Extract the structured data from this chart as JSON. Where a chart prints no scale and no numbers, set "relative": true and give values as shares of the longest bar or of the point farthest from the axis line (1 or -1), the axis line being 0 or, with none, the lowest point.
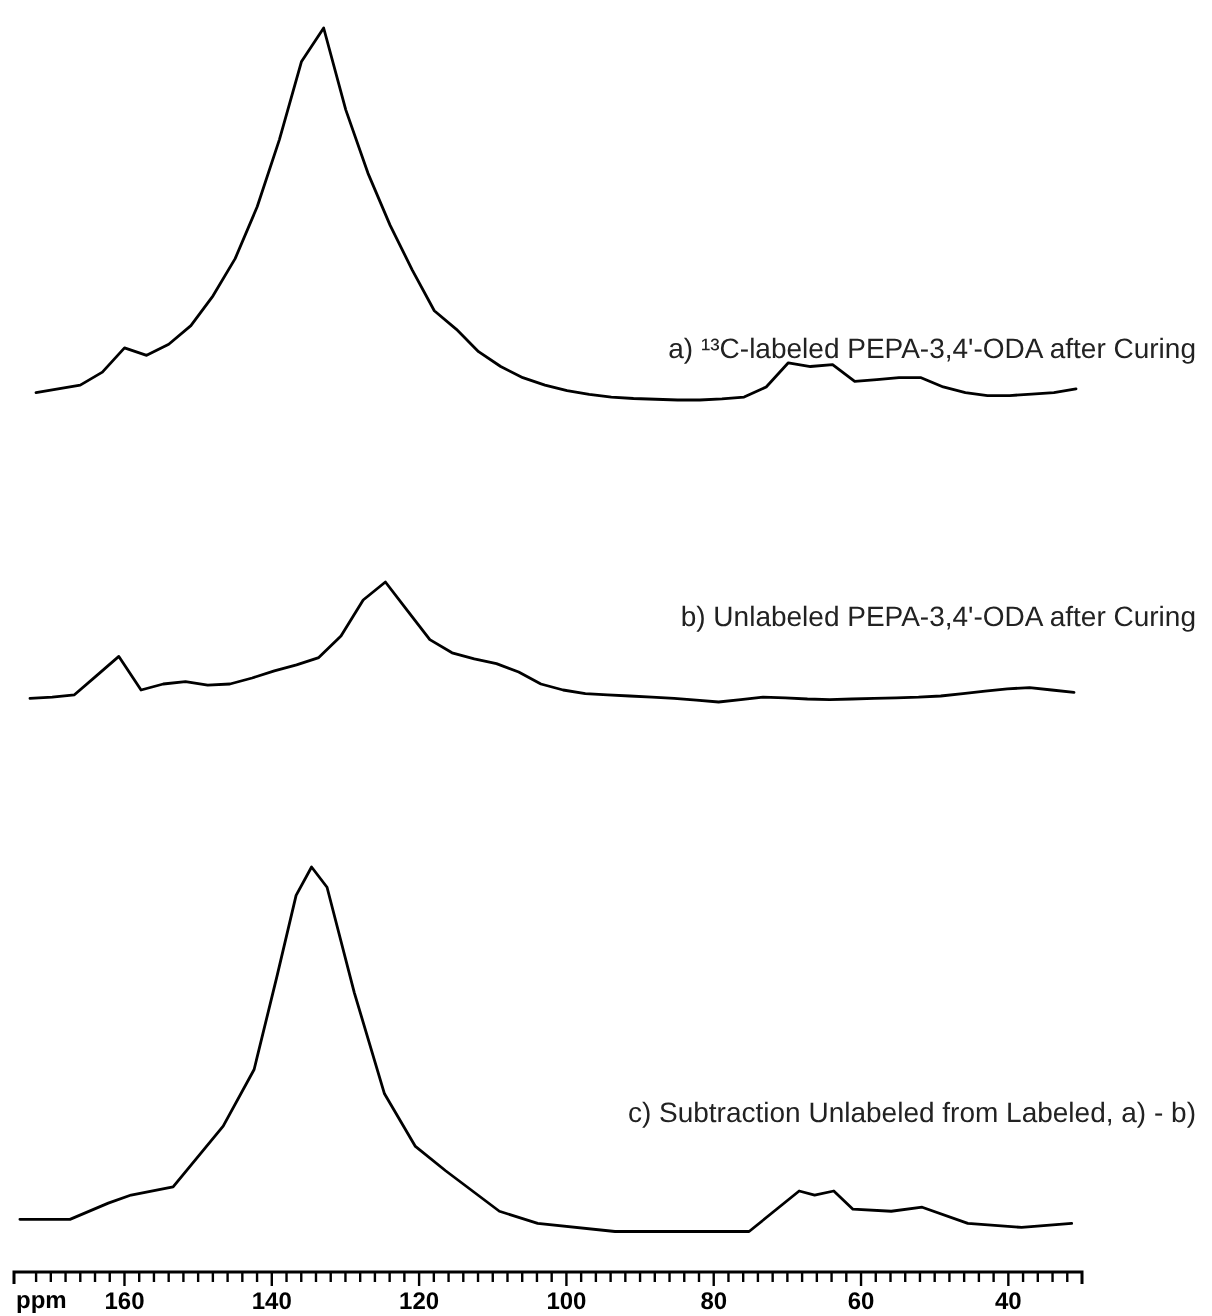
{
  "chart_data": [
    {
      "type": "line",
      "relative": true,
      "tick_labels": false,
      "categories": [
        null,
        null,
        null,
        null,
        null,
        null,
        null,
        null,
        null,
        null,
        null,
        null,
        null,
        null,
        null,
        null,
        null,
        null,
        null,
        null,
        null,
        null,
        null,
        null,
        null,
        null,
        null,
        null,
        null,
        null,
        null,
        null,
        null,
        null,
        null,
        null,
        null,
        null,
        null,
        null,
        null,
        null,
        null,
        null,
        null,
        null,
        null,
        null
      ],
      "series": [
        {
          "name": "a) ¹³C-labeled PEPA-3,4'-ODA after Curing",
          "color": "#000000",
          "values": [
            0.02,
            0.03,
            0.04,
            0.075,
            0.14,
            0.12,
            0.15,
            0.2,
            0.28,
            0.38,
            0.52,
            0.7,
            0.91,
            1,
            0.78,
            0.61,
            0.47,
            0.35,
            0.24,
            0.19,
            0.13,
            0.09,
            0.06,
            0.04,
            0.025,
            0.015,
            0.008,
            0.004,
            0.002,
            0,
            0,
            0.003,
            0.008,
            0.035,
            0.1,
            0.09,
            0.095,
            0.05,
            0.055,
            0.06,
            0.06,
            0.035,
            0.02,
            0.012,
            0.012,
            0.016,
            0.02,
            0.03
          ]
        }
      ]
    },
    {
      "type": "line",
      "relative": true,
      "tick_labels": false,
      "categories": [
        null,
        null,
        null,
        null,
        null,
        null,
        null,
        null,
        null,
        null,
        null,
        null,
        null,
        null,
        null,
        null,
        null,
        null,
        null,
        null,
        null,
        null,
        null,
        null,
        null,
        null,
        null,
        null,
        null,
        null,
        null,
        null,
        null,
        null,
        null,
        null,
        null,
        null,
        null,
        null,
        null,
        null,
        null,
        null,
        null,
        null,
        null,
        null
      ],
      "series": [
        {
          "name": "b) Unlabeled PEPA-3,4'-ODA after Curing",
          "color": "#000000",
          "values": [
            0.03,
            0.04,
            0.06,
            0.22,
            0.38,
            0.1,
            0.15,
            0.17,
            0.14,
            0.15,
            0.2,
            0.26,
            0.31,
            0.37,
            0.55,
            0.85,
            1,
            0.76,
            0.52,
            0.41,
            0.36,
            0.32,
            0.25,
            0.15,
            0.1,
            0.07,
            0.06,
            0.05,
            0.04,
            0.03,
            0.015,
            0,
            0.02,
            0.04,
            0.035,
            0.025,
            0.02,
            0.025,
            0.03,
            0.035,
            0.04,
            0.05,
            0.07,
            0.09,
            0.11,
            0.12,
            0.1,
            0.08
          ]
        }
      ]
    },
    {
      "type": "line",
      "relative": true,
      "xlim": [
        175,
        30
      ],
      "tick_labels": "x",
      "xlabel": "ppm",
      "xticks": [
        {
          "value": 172,
          "label": null
        },
        {
          "value": 170,
          "label": null
        },
        {
          "value": 168,
          "label": null
        },
        {
          "value": 166,
          "label": null
        },
        {
          "value": 164,
          "label": null
        },
        {
          "value": 162,
          "label": null
        },
        160,
        {
          "value": 158,
          "label": null
        },
        {
          "value": 156,
          "label": null
        },
        {
          "value": 154,
          "label": null
        },
        {
          "value": 152,
          "label": null
        },
        {
          "value": 150,
          "label": null
        },
        {
          "value": 148,
          "label": null
        },
        {
          "value": 146,
          "label": null
        },
        {
          "value": 144,
          "label": null
        },
        {
          "value": 142,
          "label": null
        },
        140,
        {
          "value": 138,
          "label": null
        },
        {
          "value": 136,
          "label": null
        },
        {
          "value": 134,
          "label": null
        },
        {
          "value": 132,
          "label": null
        },
        {
          "value": 130,
          "label": null
        },
        {
          "value": 128,
          "label": null
        },
        {
          "value": 126,
          "label": null
        },
        {
          "value": 124,
          "label": null
        },
        {
          "value": 122,
          "label": null
        },
        120,
        {
          "value": 118,
          "label": null
        },
        {
          "value": 116,
          "label": null
        },
        {
          "value": 114,
          "label": null
        },
        {
          "value": 112,
          "label": null
        },
        {
          "value": 110,
          "label": null
        },
        {
          "value": 108,
          "label": null
        },
        {
          "value": 106,
          "label": null
        },
        {
          "value": 104,
          "label": null
        },
        {
          "value": 102,
          "label": null
        },
        100,
        {
          "value": 98,
          "label": null
        },
        {
          "value": 96,
          "label": null
        },
        {
          "value": 94,
          "label": null
        },
        {
          "value": 92,
          "label": null
        },
        {
          "value": 90,
          "label": null
        },
        {
          "value": 88,
          "label": null
        },
        {
          "value": 86,
          "label": null
        },
        {
          "value": 84,
          "label": null
        },
        {
          "value": 82,
          "label": null
        },
        80,
        {
          "value": 78,
          "label": null
        },
        {
          "value": 76,
          "label": null
        },
        {
          "value": 74,
          "label": null
        },
        {
          "value": 72,
          "label": null
        },
        {
          "value": 70,
          "label": null
        },
        {
          "value": 68,
          "label": null
        },
        {
          "value": 66,
          "label": null
        },
        {
          "value": 64,
          "label": null
        },
        {
          "value": 62,
          "label": null
        },
        60,
        {
          "value": 58,
          "label": null
        },
        {
          "value": 56,
          "label": null
        },
        {
          "value": 54,
          "label": null
        },
        {
          "value": 52,
          "label": null
        },
        {
          "value": 50,
          "label": null
        },
        {
          "value": 48,
          "label": null
        },
        {
          "value": 46,
          "label": null
        },
        {
          "value": 44,
          "label": null
        },
        {
          "value": 42,
          "label": null
        },
        40,
        {
          "value": 38,
          "label": null
        },
        {
          "value": 36,
          "label": null
        },
        {
          "value": 34,
          "label": null
        },
        {
          "value": 32,
          "label": null
        }
      ],
      "series": [
        {
          "name": "c) Subtraction Unlabeled from Labeled, a) - b)",
          "color": "#000000",
          "x": [
            174.2,
            170.6,
            167.4,
            162.2,
            159.1,
            153.4,
            146.6,
            142.4,
            139.3,
            136.7,
            134.6,
            132.5,
            128.8,
            124.7,
            120.5,
            116.4,
            109.1,
            103.9,
            93.4,
            83,
            75.2,
            68.4,
            66.3,
            63.7,
            61.1,
            55.9,
            51.7,
            45.5,
            38.2,
            31.4
          ],
          "values": [
            0.13,
            0.13,
            0.13,
            0.17,
            0.19,
            0.21,
            0.36,
            0.5,
            0.73,
            0.93,
            1,
            0.95,
            0.69,
            0.44,
            0.31,
            0.25,
            0.15,
            0.12,
            0.1,
            0.1,
            0.1,
            0.2,
            0.19,
            0.2,
            0.155,
            0.15,
            0.16,
            0.12,
            0.11,
            0.12
          ]
        }
      ]
    }
  ]
}
